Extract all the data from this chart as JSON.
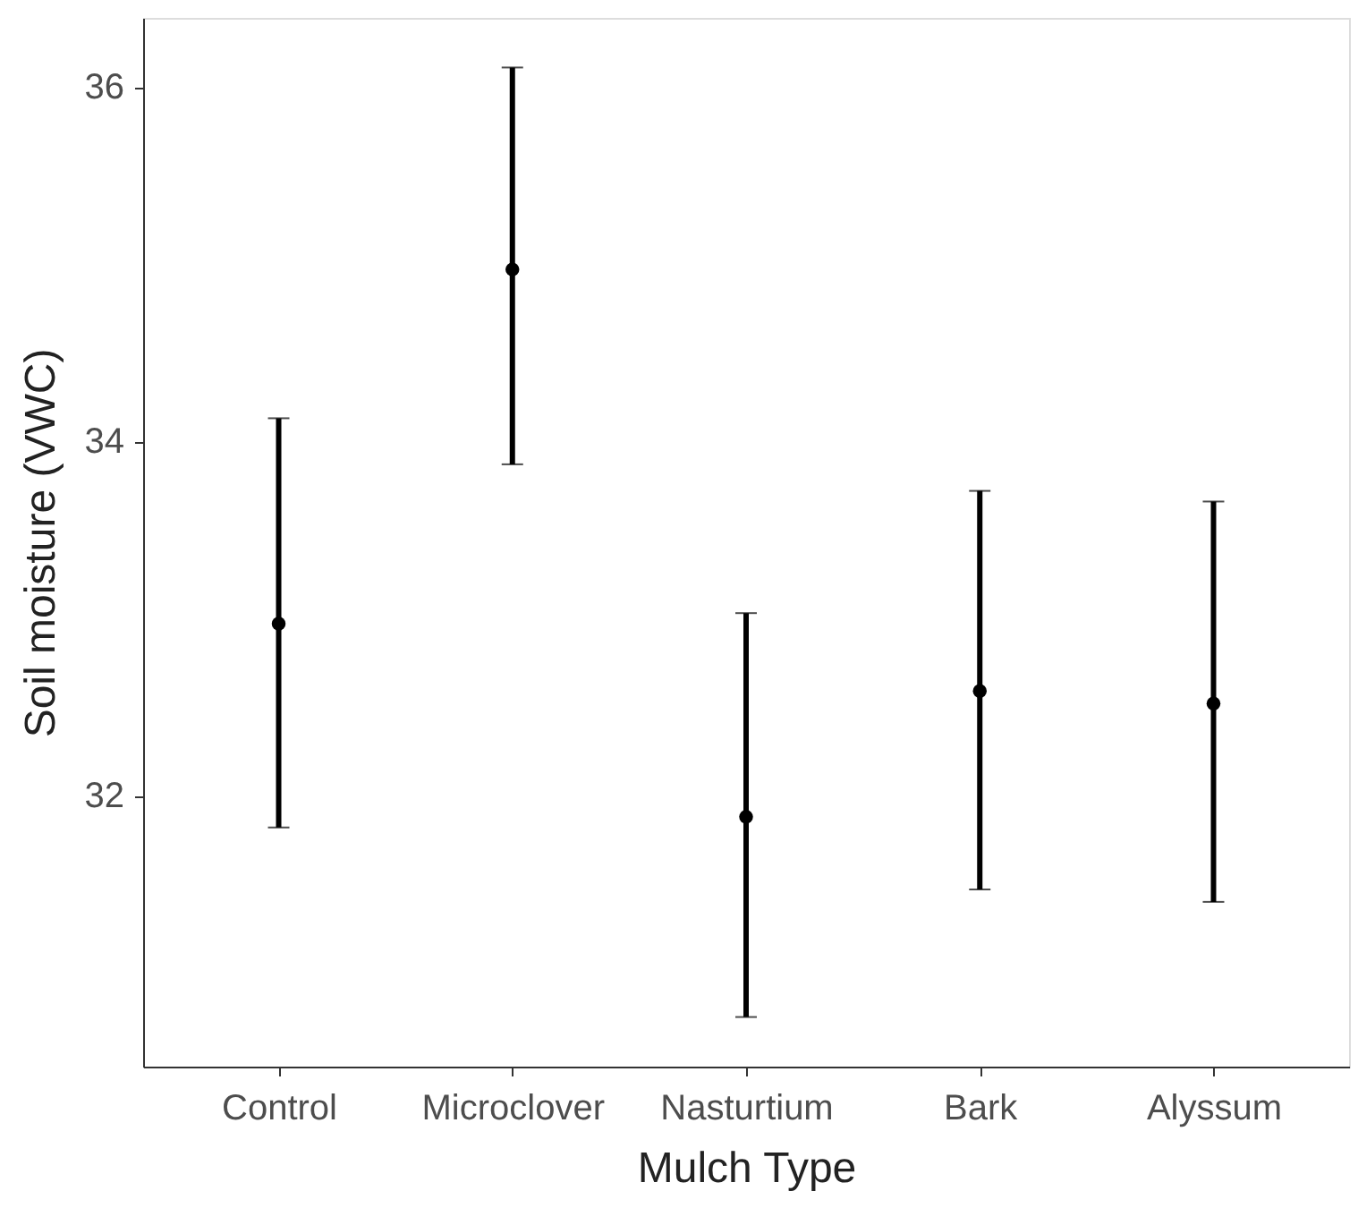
{
  "chart_data": {
    "type": "scatter",
    "xlabel": "Mulch Type",
    "ylabel": "Soil moisture (VWC)",
    "categories": [
      "Control",
      "Microclover",
      "Nasturtium",
      "Bark",
      "Alyssum"
    ],
    "values": [
      32.97,
      34.97,
      31.88,
      32.59,
      32.52
    ],
    "errors": [
      [
        31.82,
        34.13
      ],
      [
        33.87,
        36.11
      ],
      [
        30.75,
        33.03
      ],
      [
        31.47,
        33.72
      ],
      [
        31.4,
        33.66
      ]
    ],
    "color": "#000000",
    "marker": "circle",
    "ylim": [
      30.47,
      36.39
    ],
    "yticks": [
      32,
      34,
      36
    ],
    "grid": false
  }
}
